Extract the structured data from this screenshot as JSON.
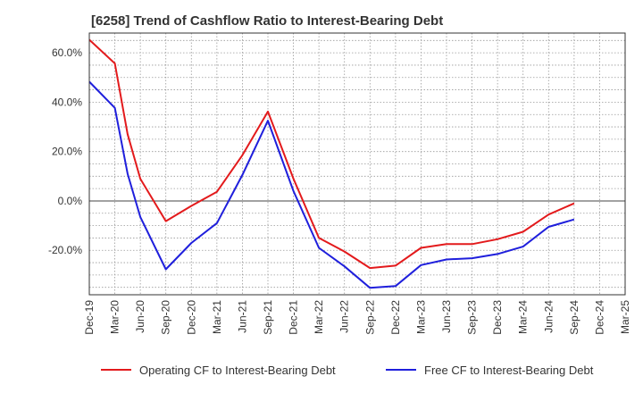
{
  "chart_data": {
    "type": "line",
    "title": "[6258]  Trend of Cashflow Ratio to Interest-Bearing Debt",
    "xlabel": "",
    "ylabel": "",
    "categories": [
      "Dec-19",
      "Mar-20",
      "Jun-20",
      "Sep-20",
      "Dec-20",
      "Mar-21",
      "Jun-21",
      "Sep-21",
      "Dec-21",
      "Mar-22",
      "Jun-22",
      "Sep-22",
      "Dec-22",
      "Mar-23",
      "Jun-23",
      "Sep-23",
      "Dec-23",
      "Mar-24",
      "Jun-24",
      "Sep-24",
      "Dec-24",
      "Mar-25"
    ],
    "yticks": [
      60,
      40,
      20,
      0,
      -20
    ],
    "ytick_labels": [
      "60.0%",
      "40.0%",
      "20.0%",
      "0.0%",
      "-20.0%"
    ],
    "ylim": [
      -38,
      68
    ],
    "grid": true,
    "legend_position": "bottom",
    "series": [
      {
        "name": "Operating CF to Interest-Bearing Debt",
        "color": "#e31a1c",
        "points": [
          [
            0,
            65.3
          ],
          [
            1,
            55.7
          ],
          [
            1.5,
            27
          ],
          [
            2,
            9
          ],
          [
            3,
            -8.2
          ],
          [
            4,
            -2
          ],
          [
            5,
            3.7
          ],
          [
            6,
            18.5
          ],
          [
            7,
            36.2
          ],
          [
            8,
            9
          ],
          [
            9,
            -15
          ],
          [
            10,
            -20.5
          ],
          [
            11,
            -27.2
          ],
          [
            12,
            -26.2
          ],
          [
            13,
            -19
          ],
          [
            14,
            -17.5
          ],
          [
            15,
            -17.5
          ],
          [
            16,
            -15.5
          ],
          [
            17,
            -12.5
          ],
          [
            18,
            -5.5
          ],
          [
            19,
            -1
          ]
        ]
      },
      {
        "name": "Free CF to Interest-Bearing Debt",
        "color": "#1f1fdc",
        "points": [
          [
            0,
            48.3
          ],
          [
            1,
            37.7
          ],
          [
            1.5,
            11
          ],
          [
            2,
            -6.5
          ],
          [
            3,
            -27.7
          ],
          [
            4,
            -17
          ],
          [
            5,
            -9
          ],
          [
            6,
            10.5
          ],
          [
            7,
            32.5
          ],
          [
            8,
            4
          ],
          [
            9,
            -19
          ],
          [
            10,
            -26.5
          ],
          [
            11,
            -35.2
          ],
          [
            12,
            -34.5
          ],
          [
            13,
            -26
          ],
          [
            14,
            -23.7
          ],
          [
            15,
            -23.2
          ],
          [
            16,
            -21.5
          ],
          [
            17,
            -18.5
          ],
          [
            18,
            -10.5
          ],
          [
            19,
            -7.5
          ]
        ]
      }
    ]
  }
}
